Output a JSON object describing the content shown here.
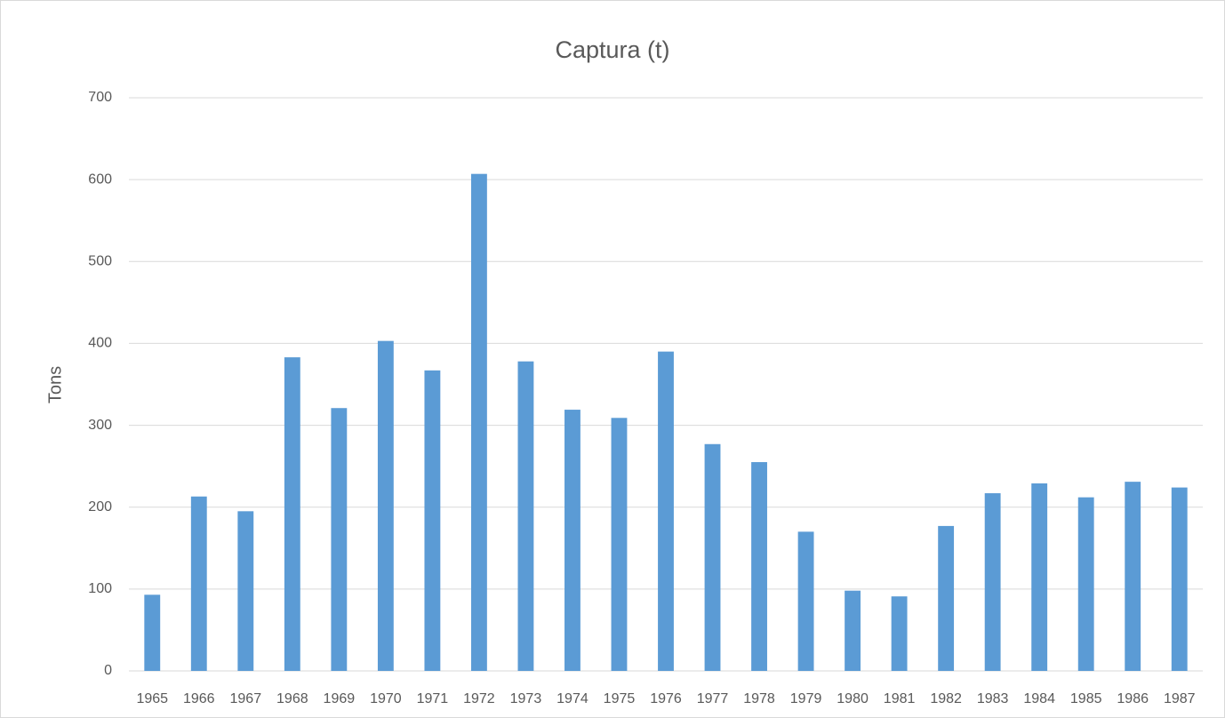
{
  "chart_data": {
    "type": "bar",
    "title": "Captura (t)",
    "y_label": "Tons",
    "categories": [
      "1965",
      "1966",
      "1967",
      "1968",
      "1969",
      "1970",
      "1971",
      "1972",
      "1973",
      "1974",
      "1975",
      "1976",
      "1977",
      "1978",
      "1979",
      "1980",
      "1981",
      "1982",
      "1983",
      "1984",
      "1985",
      "1986",
      "1987"
    ],
    "values": [
      93,
      213,
      195,
      383,
      321,
      403,
      367,
      607,
      378,
      319,
      309,
      390,
      277,
      255,
      170,
      98,
      91,
      177,
      217,
      229,
      212,
      231,
      224
    ],
    "color": "#5b9bd5",
    "ylim": [
      0,
      700
    ],
    "yticks": [
      0,
      100,
      200,
      300,
      400,
      500,
      600,
      700
    ],
    "grid": true
  }
}
